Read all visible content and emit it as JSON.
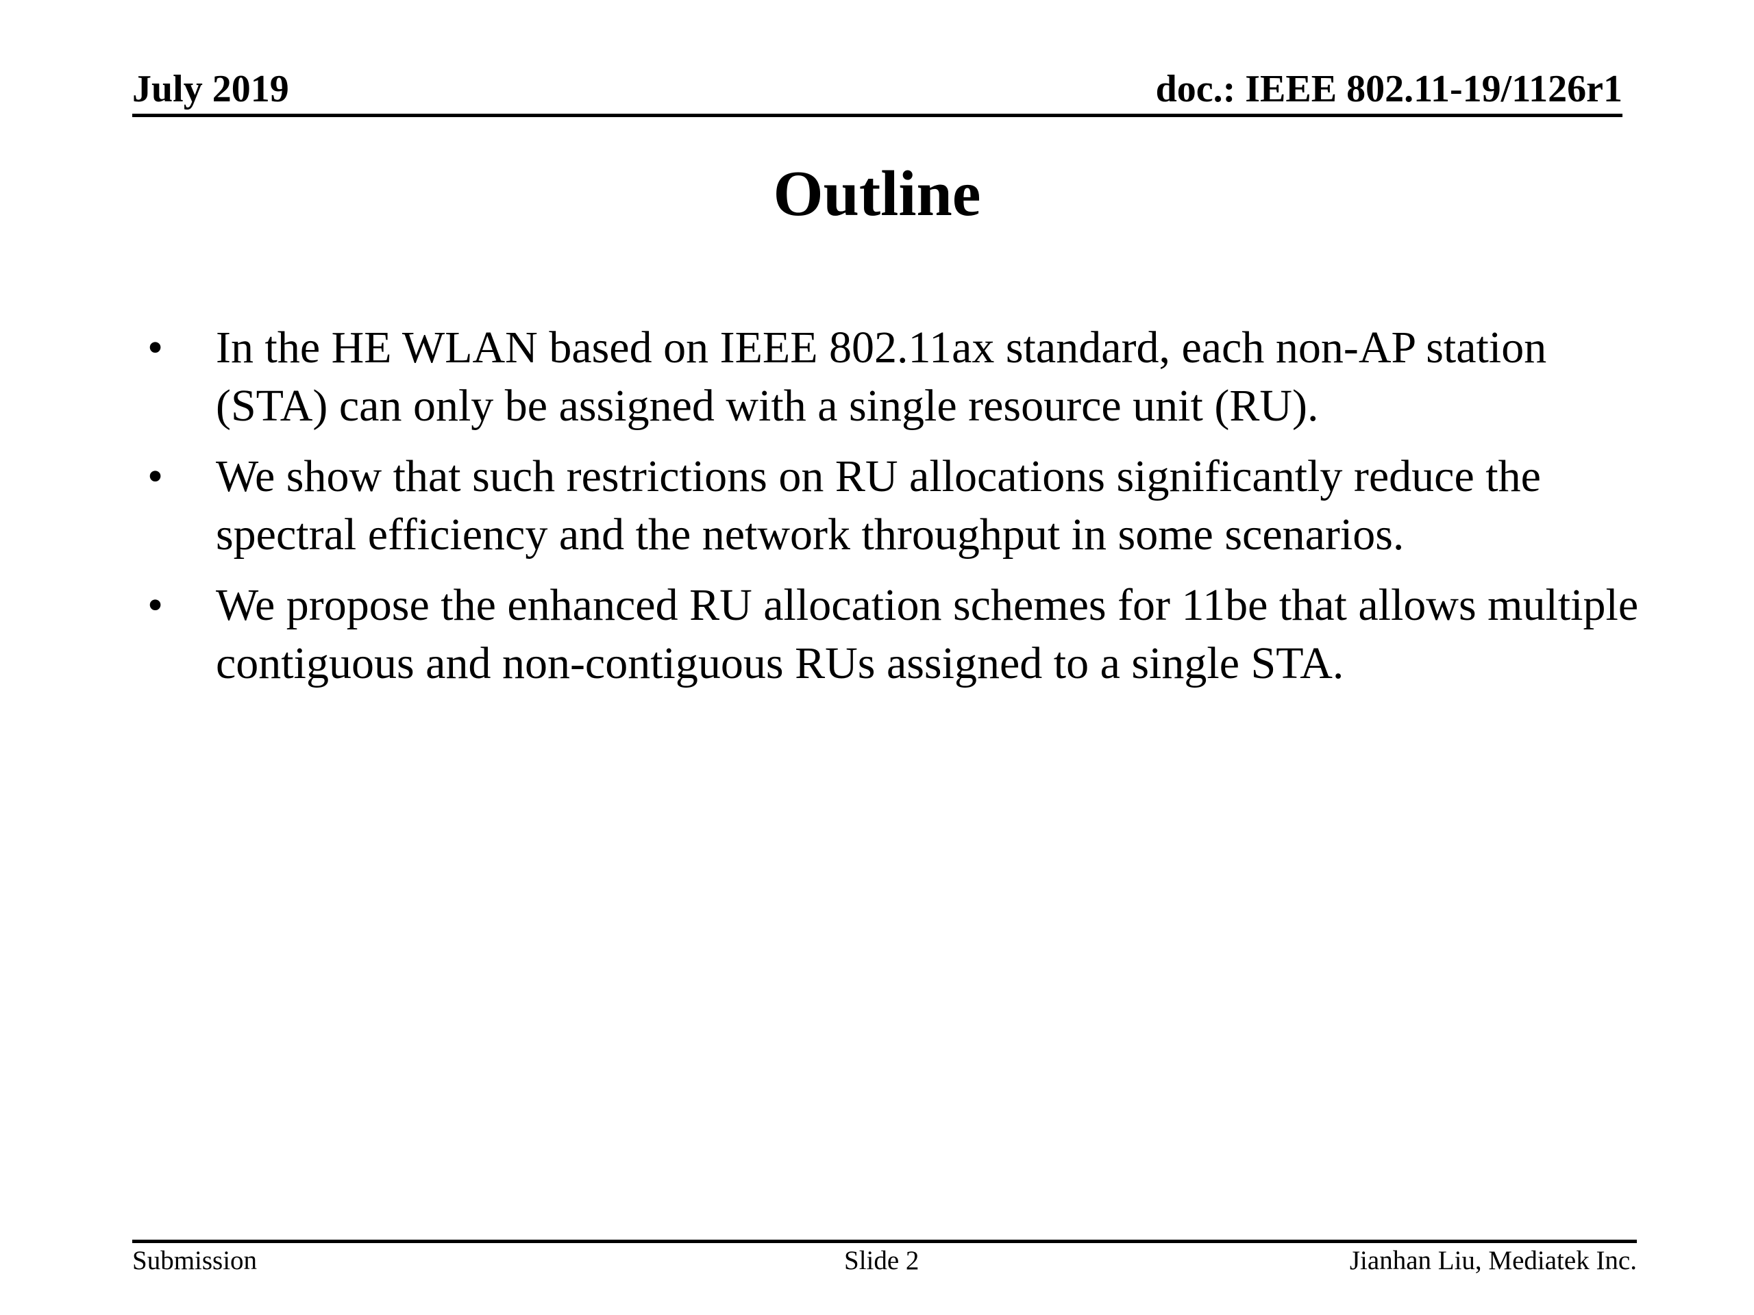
{
  "header": {
    "date": "July 2019",
    "doc_id": "doc.: IEEE 802.11-19/1126r1"
  },
  "title": "Outline",
  "bullets": [
    {
      "marker": "•",
      "text": "In the HE WLAN based on IEEE 802.11ax standard, each non-AP station (STA) can only be assigned with a single resource unit (RU)."
    },
    {
      "marker": "•",
      "text": "We show that such restrictions on RU allocations significantly reduce the spectral efficiency and the network throughput in some scenarios."
    },
    {
      "marker": "•",
      "text": "We propose the enhanced RU allocation schemes for 11be that allows multiple contiguous and non-contiguous RUs assigned to a single STA."
    }
  ],
  "footer": {
    "left": "Submission",
    "center": "Slide 2",
    "right": "Jianhan Liu, Mediatek Inc."
  }
}
